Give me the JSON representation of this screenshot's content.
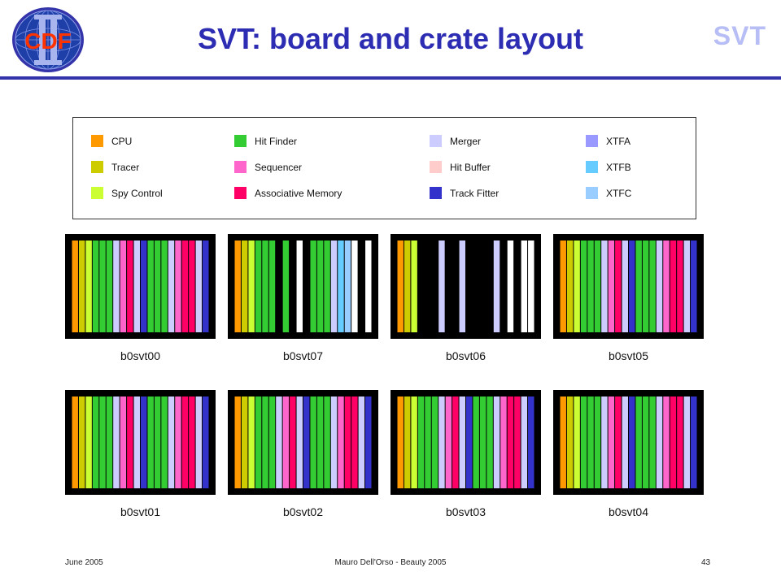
{
  "header": {
    "title": "SVT: board and crate layout",
    "corner_text": "SVT",
    "logo_text": "CDF"
  },
  "legend": [
    {
      "label": "CPU",
      "color": "#ff9900"
    },
    {
      "label": "Tracer",
      "color": "#cccc00"
    },
    {
      "label": "Spy Control",
      "color": "#ccff33"
    },
    {
      "label": "Hit Finder",
      "color": "#33cc33"
    },
    {
      "label": "Sequencer",
      "color": "#ff66cc"
    },
    {
      "label": "Associative Memory",
      "color": "#ff0066"
    },
    {
      "label": "Merger",
      "color": "#ccccff"
    },
    {
      "label": "Hit Buffer",
      "color": "#ffcccc"
    },
    {
      "label": "Track Fitter",
      "color": "#3333cc"
    },
    {
      "label": "XTFA",
      "color": "#9999ff"
    },
    {
      "label": "XTFB",
      "color": "#66ccff"
    },
    {
      "label": "XTFC",
      "color": "#99ccff"
    }
  ],
  "board_colors": {
    "O": "#ff9900",
    "T": "#cccc00",
    "S": "#ccff33",
    "G": "#33cc33",
    "P": "#ff66cc",
    "R": "#ff0066",
    "L": "#ccccff",
    "H": "#ffcccc",
    "B": "#3333cc",
    "A": "#9999ff",
    "C": "#66ccff",
    "D": "#99ccff",
    "K": "#000000",
    "W": "#ffffff"
  },
  "crates": [
    {
      "name": "b0svt00",
      "slots": [
        "O",
        "T",
        "S",
        "G",
        "G",
        "G",
        "L",
        "P",
        "R",
        "L",
        "B",
        "G",
        "G",
        "G",
        "L",
        "P",
        "R",
        "R",
        "L",
        "B"
      ]
    },
    {
      "name": "b0svt07",
      "slots": [
        "O",
        "T",
        "S",
        "G",
        "G",
        "G",
        "K",
        "G",
        "K",
        "W",
        "K",
        "G",
        "G",
        "G",
        "L",
        "C",
        "D",
        "W",
        "K",
        "W"
      ]
    },
    {
      "name": "b0svt06",
      "slots": [
        "O",
        "T",
        "S",
        "K",
        "K",
        "K",
        "L",
        "K",
        "K",
        "L",
        "K",
        "K",
        "K",
        "K",
        "L",
        "K",
        "W",
        "K",
        "W",
        "W"
      ]
    },
    {
      "name": "b0svt05",
      "slots": [
        "O",
        "T",
        "S",
        "G",
        "G",
        "G",
        "L",
        "P",
        "R",
        "L",
        "B",
        "G",
        "G",
        "G",
        "L",
        "P",
        "R",
        "R",
        "L",
        "B"
      ]
    },
    {
      "name": "b0svt01",
      "slots": [
        "O",
        "T",
        "S",
        "G",
        "G",
        "G",
        "L",
        "P",
        "R",
        "L",
        "B",
        "G",
        "G",
        "G",
        "L",
        "P",
        "R",
        "R",
        "L",
        "B"
      ]
    },
    {
      "name": "b0svt02",
      "slots": [
        "O",
        "T",
        "S",
        "G",
        "G",
        "G",
        "L",
        "P",
        "R",
        "L",
        "B",
        "G",
        "G",
        "G",
        "L",
        "P",
        "R",
        "R",
        "L",
        "B"
      ]
    },
    {
      "name": "b0svt03",
      "slots": [
        "O",
        "T",
        "S",
        "G",
        "G",
        "G",
        "L",
        "P",
        "R",
        "L",
        "B",
        "G",
        "G",
        "G",
        "L",
        "P",
        "R",
        "R",
        "L",
        "B"
      ]
    },
    {
      "name": "b0svt04",
      "slots": [
        "O",
        "T",
        "S",
        "G",
        "G",
        "G",
        "L",
        "P",
        "R",
        "L",
        "B",
        "G",
        "G",
        "G",
        "L",
        "P",
        "R",
        "R",
        "L",
        "B"
      ]
    }
  ],
  "footer": {
    "date": "June 2005",
    "author": "Mauro Dell'Orso - Beauty 2005",
    "page": "43"
  }
}
